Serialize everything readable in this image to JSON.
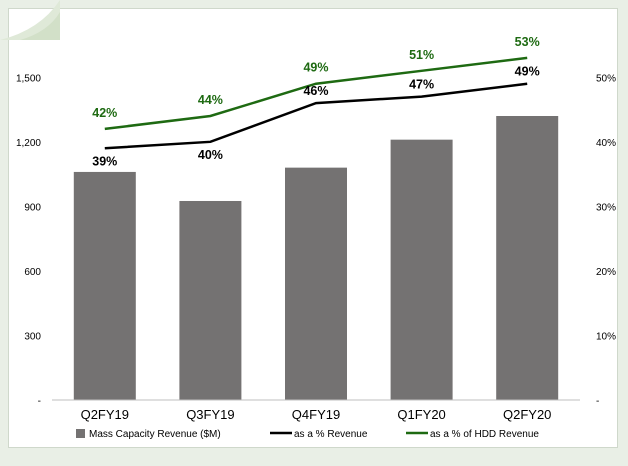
{
  "chart_data": {
    "type": "bar",
    "categories": [
      "Q2FY19",
      "Q3FY19",
      "Q4FY19",
      "Q1FY20",
      "Q2FY20"
    ],
    "series": [
      {
        "name": "Mass Capacity Revenue ($M)",
        "type": "bar",
        "axis": "left",
        "color": "#747272",
        "values": [
          1060,
          925,
          1080,
          1210,
          1320
        ]
      },
      {
        "name": "as a % Revenue",
        "type": "line",
        "axis": "right",
        "color": "#000000",
        "values": [
          39,
          40,
          46,
          47,
          49
        ],
        "labels": [
          "39%",
          "40%",
          "46%",
          "47%",
          "49%"
        ]
      },
      {
        "name": "as a % of HDD Revenue",
        "type": "line",
        "axis": "right",
        "color": "#1e6a12",
        "values": [
          42,
          44,
          49,
          51,
          53
        ],
        "labels": [
          "42%",
          "44%",
          "49%",
          "51%",
          "53%"
        ]
      }
    ],
    "y_left": {
      "ylim": [
        0,
        1650
      ],
      "ticks": [
        0,
        300,
        600,
        900,
        1200,
        1500
      ],
      "tick_labels": [
        "-",
        "300",
        "600",
        "900",
        "1,200",
        "1,500"
      ]
    },
    "y_right": {
      "ylim": [
        0,
        55
      ],
      "ticks": [
        0,
        10,
        20,
        30,
        40,
        50
      ],
      "tick_labels": [
        "-",
        "10%",
        "20%",
        "30%",
        "40%",
        "50%"
      ]
    },
    "grid": false,
    "legend": "bottom"
  }
}
